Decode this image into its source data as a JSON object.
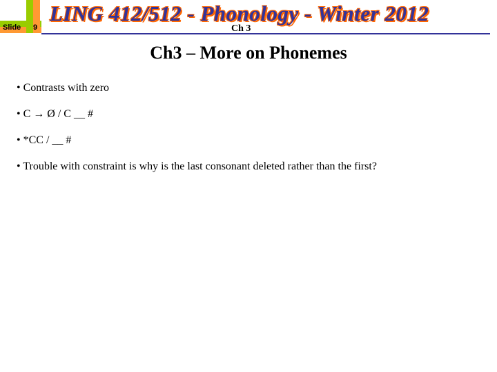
{
  "header": {
    "slide_label": "Slide",
    "slide_number": "9",
    "course_title": "LING 412/512 - Phonology - Winter 2012",
    "chapter_label": "Ch 3"
  },
  "title": "Ch3 – More on Phonemes",
  "bullets": [
    "• Contrasts with zero",
    "• C → Ø / C __ #",
    "• *CC / __ #",
    "• Trouble with constraint is why is the last consonant deleted rather than the first?"
  ],
  "colors": {
    "green": "#99cc00",
    "orange": "#ff9933",
    "title_blue": "#333399",
    "title_outline": "#ff6600",
    "divider": "#333399",
    "background": "#ffffff",
    "text": "#000000"
  },
  "fonts": {
    "course_title_size": 31,
    "slide_title_size": 26,
    "body_size": 16,
    "label_size": 11,
    "chapter_size": 14
  }
}
